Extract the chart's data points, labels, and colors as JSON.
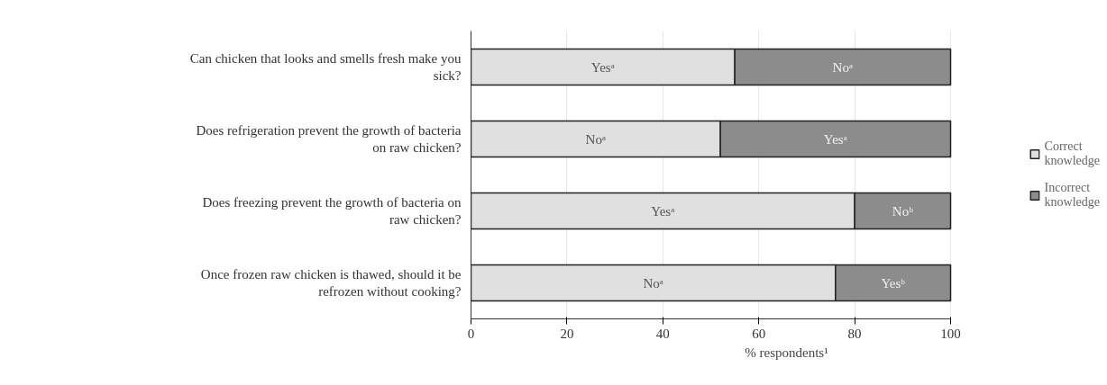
{
  "chart_data": {
    "type": "bar",
    "orientation": "horizontal",
    "stacked": true,
    "xlabel": "% respondents¹",
    "categories": [
      "Can chicken that looks and smells fresh make you sick?",
      "Does refrigeration prevent the growth of bacteria on raw chicken?",
      "Does freezing prevent the growth of bacteria on raw chicken?",
      "Once frozen raw chicken is thawed, should it be refrozen without cooking?"
    ],
    "series": [
      {
        "name": "Correct knowledge",
        "color": "#e0e0e0",
        "values": [
          55,
          52,
          80,
          76
        ],
        "value_labels": [
          "Yesᵃ",
          "Noᵃ",
          "Yesᵃ",
          "Noᵃ"
        ]
      },
      {
        "name": "Incorrect knowledge",
        "color": "#8c8c8c",
        "values": [
          45,
          48,
          20,
          24
        ],
        "value_labels": [
          "Noᵃ",
          "Yesᵃ",
          "Noᵇ",
          "Yesᵇ"
        ]
      }
    ],
    "xlim": [
      0,
      100
    ],
    "xticks": [
      0,
      20,
      40,
      60,
      80,
      100
    ],
    "grid": "x",
    "legend": "right"
  }
}
